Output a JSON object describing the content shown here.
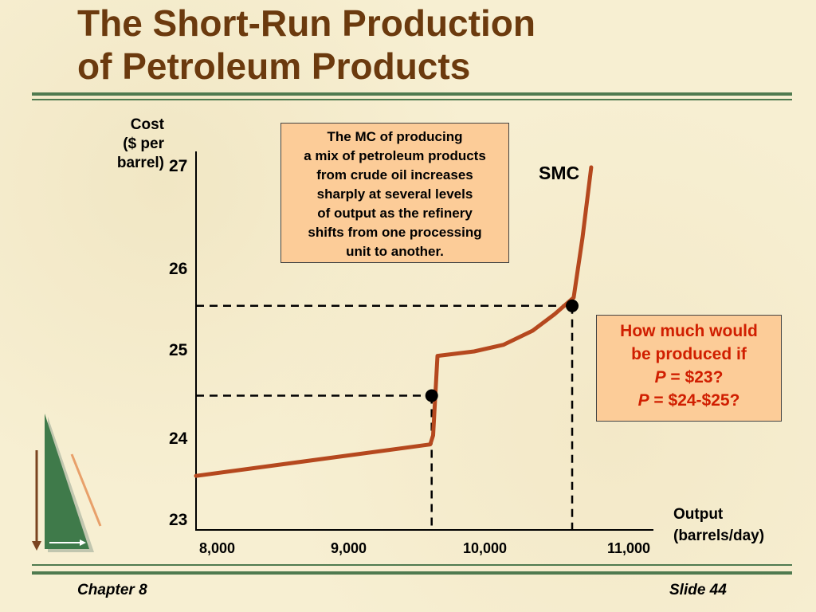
{
  "slide": {
    "title_line1": "The Short-Run Production",
    "title_line2": "of Petroleum Products",
    "chapter": "Chapter 8",
    "slide_number": "Slide 44"
  },
  "chart_data": {
    "type": "line",
    "ylabel_lines": [
      "Cost",
      "($ per",
      "barrel)"
    ],
    "xlabel_lines": [
      "Output",
      "(barrels/day)"
    ],
    "xlim": [
      8000,
      11000
    ],
    "ylim": [
      23,
      27
    ],
    "x_ticks": [
      "8,000",
      "9,000",
      "10,000",
      "11,000"
    ],
    "y_ticks": [
      "23",
      "24",
      "25",
      "26",
      "27"
    ],
    "series": [
      {
        "name": "SMC",
        "color": "#b5481e",
        "points": [
          [
            8000,
            23.6
          ],
          [
            9600,
            23.95
          ],
          [
            9620,
            24.05
          ],
          [
            9650,
            24.95
          ],
          [
            9900,
            25.0
          ],
          [
            10100,
            25.08
          ],
          [
            10300,
            25.25
          ],
          [
            10450,
            25.45
          ],
          [
            10580,
            25.65
          ],
          [
            10640,
            26.3
          ],
          [
            10700,
            27.0
          ]
        ]
      }
    ],
    "reference_points": [
      {
        "x": 9610,
        "y": 24.5
      },
      {
        "x": 10570,
        "y": 25.55
      }
    ],
    "note": [
      "The MC of producing",
      "a mix of petroleum products",
      "from crude oil increases",
      "sharply at several levels",
      "of output as the refinery",
      "shifts from one processing",
      "unit to another."
    ],
    "question": {
      "line1": "How much would",
      "line2": "be produced if",
      "p_symbol": "P",
      "eq1": " = $23?",
      "eq2": " = $24-$25?"
    }
  },
  "colors": {
    "title": "#6b3a0e",
    "rule": "#4f7a4f",
    "curve": "#b5481e",
    "box_fill": "#fccc98",
    "question_text": "#d01e00"
  }
}
